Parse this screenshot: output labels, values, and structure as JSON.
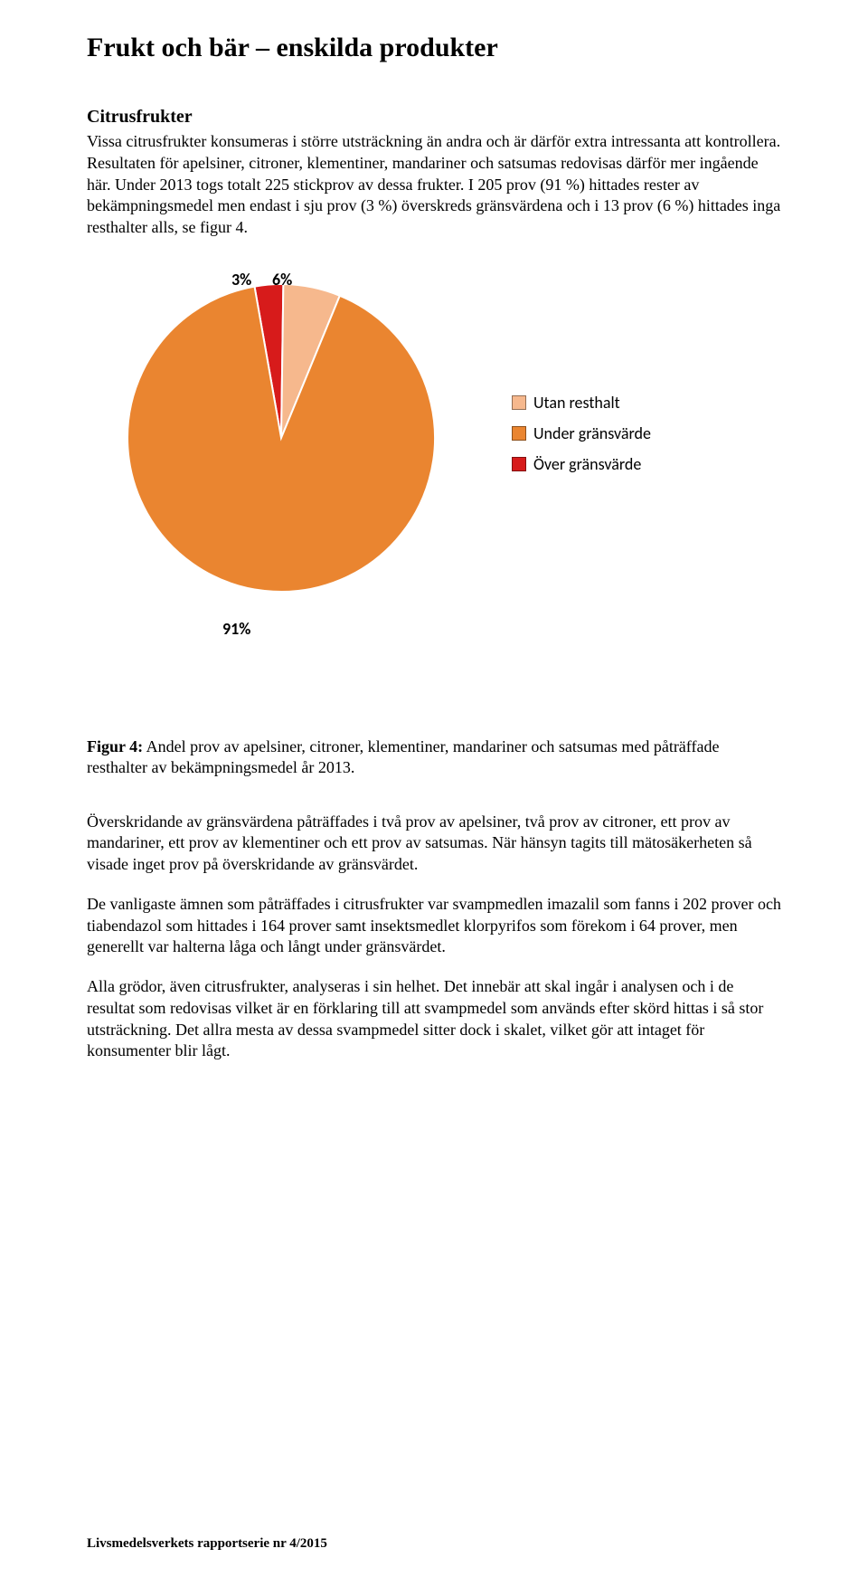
{
  "title": "Frukt och bär – enskilda produkter",
  "subtitle": "Citrusfrukter",
  "paragraph1": "Vissa citrusfrukter konsumeras i större utsträckning än andra och är därför extra intressanta att kontrollera. Resultaten för apelsiner, citroner, klementiner, mandariner och satsumas redovisas därför mer ingående här. Under 2013 togs totalt 225 stickprov av dessa frukter. I 205 prov (91 %) hittades rester av bekämpningsmedel men endast i sju prov (3 %) överskreds gränsvärdena och i 13 prov (6 %) hittades inga resthalter alls, se figur 4.",
  "chart": {
    "type": "pie",
    "slices": [
      {
        "label": "Utan resthalt",
        "value": 6,
        "color": "#f6b88d",
        "label_text": "6%"
      },
      {
        "label": "Under gränsvärde",
        "value": 91,
        "color": "#ea8530",
        "label_text": "91%"
      },
      {
        "label": "Över gränsvärde",
        "value": 3,
        "color": "#d71b1b",
        "label_text": "3%"
      }
    ],
    "legend_font_family": "Calibri",
    "legend_fontsize": 18,
    "label_fontsize": 18,
    "label_weight": "bold",
    "background_color": "#ffffff"
  },
  "caption_bold": "Figur 4:",
  "caption_rest": " Andel prov av apelsiner, citroner, klementiner, mandariner och satsumas med påträffade resthalter av bekämpningsmedel år 2013.",
  "paragraph2": "Överskridande av gränsvärdena påträffades i två prov av apelsiner, två prov av citroner, ett prov av mandariner, ett prov av klementiner och ett prov av satsumas. När hänsyn tagits till mätosäkerheten så visade inget prov på överskridande av gränsvärdet.",
  "paragraph3": "De vanligaste ämnen som påträffades i citrusfrukter var svampmedlen imazalil som fanns i 202 prover och tiabendazol som hittades i 164 prover samt insektsmedlet klorpyrifos som förekom i 64 prover, men generellt var halterna låga och långt under gränsvärdet.",
  "paragraph4": "Alla grödor, även citrusfrukter, analyseras i sin helhet. Det innebär att skal ingår i analysen och i de resultat som redovisas vilket är en förklaring till att svampmedel som används efter skörd hittas i så stor utsträckning. Det allra mesta av dessa svampmedel sitter dock i skalet, vilket gör att intaget för konsumenter blir lågt.",
  "footer": "Livsmedelsverkets rapportserie nr 4/2015"
}
